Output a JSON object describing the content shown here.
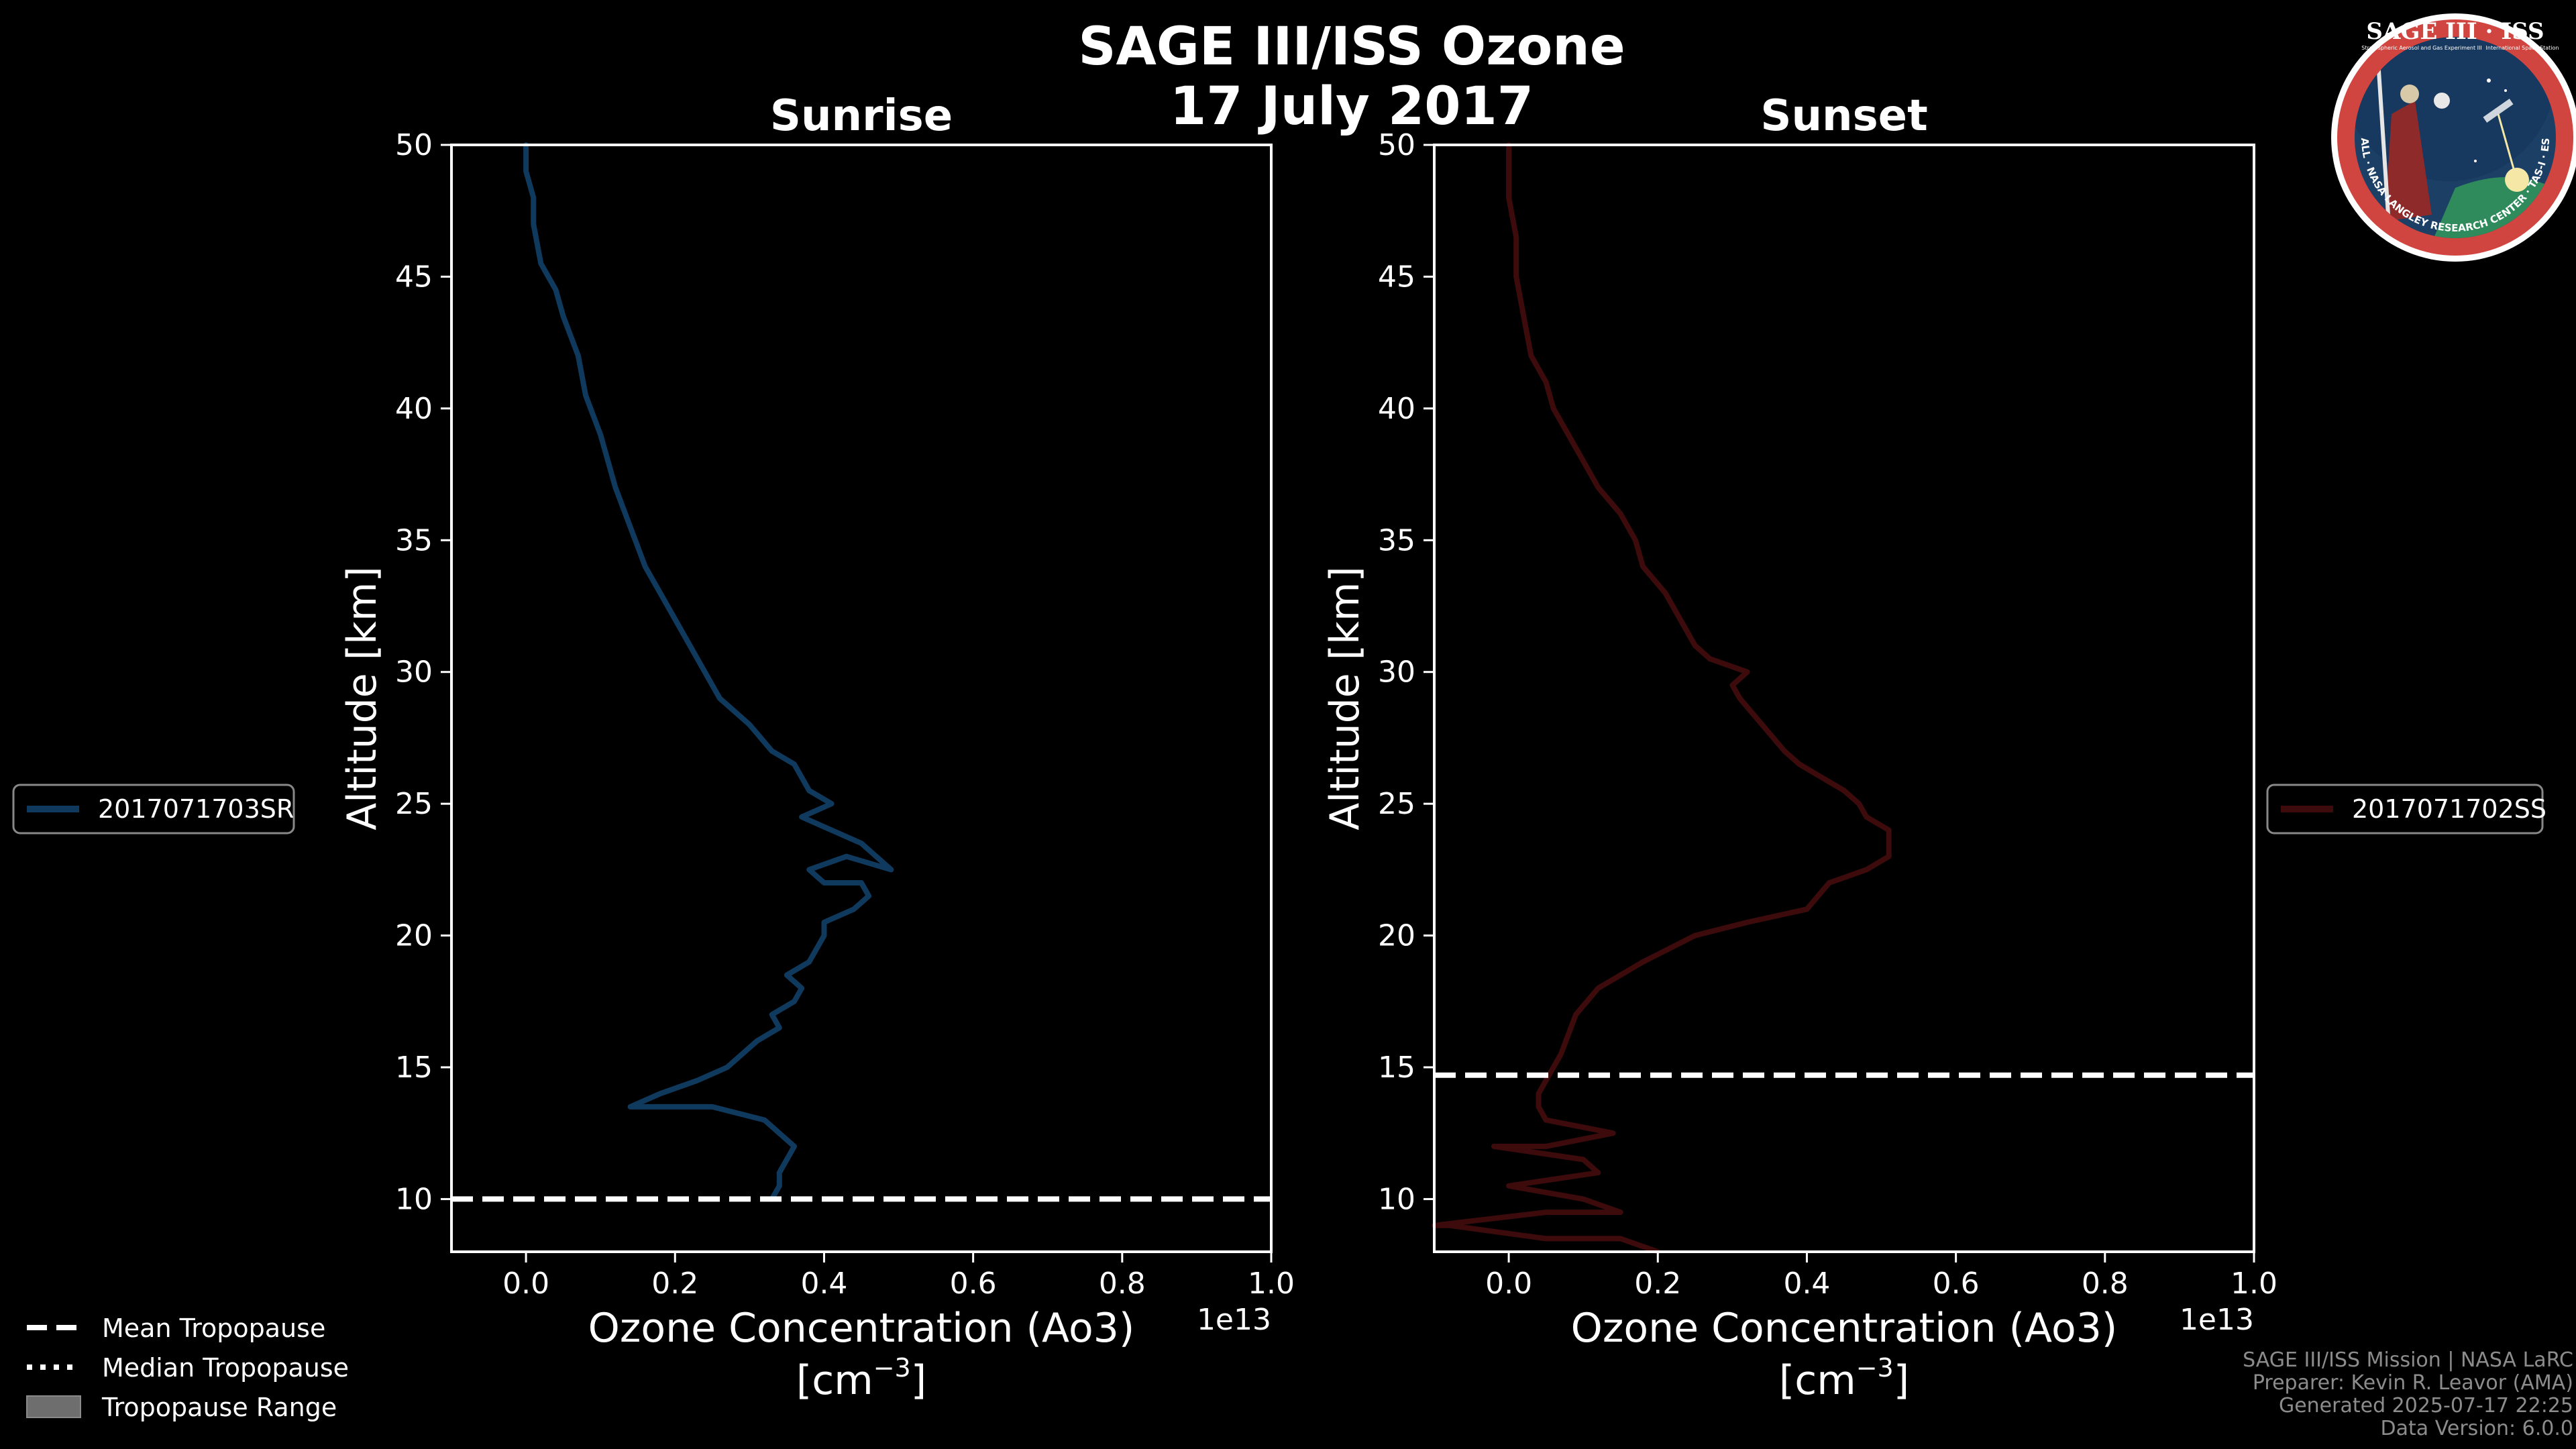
{
  "chart_data": {
    "type": "line",
    "title_line1": "SAGE III/ISS Ozone",
    "title_line2": "17 July 2017",
    "exponent_label": "1e13",
    "xlabel_line1": "Ozone Concentration (Ao3)",
    "xlabel_line2_pre": "[cm",
    "xlabel_line2_sup": "−3",
    "xlabel_line2_post": "]",
    "ylabel": "Altitude [km]",
    "xlim": [
      -0.1,
      1.0
    ],
    "ylim": [
      8,
      50
    ],
    "xticks": [
      0.0,
      0.2,
      0.4,
      0.6,
      0.8,
      1.0
    ],
    "xtick_labels": [
      "0.0",
      "0.2",
      "0.4",
      "0.6",
      "0.8",
      "1.0"
    ],
    "yticks": [
      10,
      15,
      20,
      25,
      30,
      35,
      40,
      45,
      50
    ],
    "ytick_labels": [
      "10",
      "15",
      "20",
      "25",
      "30",
      "35",
      "40",
      "45",
      "50"
    ],
    "panels": [
      {
        "title": "Sunrise",
        "series": [
          {
            "name": "2017071703SR",
            "color": "#0f3a5e",
            "x": [
              0.33,
              0.34,
              0.34,
              0.35,
              0.36,
              0.34,
              0.32,
              0.25,
              0.18,
              0.14,
              0.18,
              0.23,
              0.27,
              0.31,
              0.34,
              0.33,
              0.36,
              0.37,
              0.35,
              0.38,
              0.4,
              0.4,
              0.44,
              0.46,
              0.45,
              0.4,
              0.38,
              0.43,
              0.49,
              0.45,
              0.37,
              0.41,
              0.38,
              0.36,
              0.33,
              0.3,
              0.26,
              0.25,
              0.22,
              0.2,
              0.18,
              0.16,
              0.14,
              0.12,
              0.11,
              0.1,
              0.08,
              0.07,
              0.05,
              0.04,
              0.02,
              0.01,
              0.01,
              0.0,
              0.0
            ],
            "y": [
              10.0,
              10.5,
              11.0,
              11.5,
              12.0,
              12.5,
              13.0,
              13.5,
              13.5,
              13.5,
              14.0,
              14.5,
              15.0,
              16.0,
              16.5,
              17.0,
              17.5,
              18.0,
              18.5,
              19.0,
              20.0,
              20.5,
              21.0,
              21.5,
              22.0,
              22.0,
              22.5,
              23.0,
              22.5,
              23.5,
              24.5,
              25.0,
              25.5,
              26.5,
              27.0,
              28.0,
              29.0,
              29.5,
              31.0,
              32.0,
              33.0,
              34.0,
              35.5,
              37.0,
              38.0,
              39.0,
              40.5,
              42.0,
              43.5,
              44.5,
              45.5,
              47.0,
              48.0,
              49.0,
              50.0
            ]
          }
        ],
        "tropopause_mean": 10.0,
        "legend_label": "2017071703SR"
      },
      {
        "title": "Sunset",
        "series": [
          {
            "name": "2017071702SS",
            "color": "#3d0b0b",
            "x": [
              0.2,
              0.15,
              0.05,
              -0.08,
              -0.1,
              0.05,
              0.15,
              0.1,
              0.0,
              0.12,
              0.1,
              -0.02,
              0.05,
              0.14,
              0.05,
              0.04,
              0.04,
              0.05,
              0.07,
              0.09,
              0.12,
              0.18,
              0.25,
              0.32,
              0.4,
              0.43,
              0.48,
              0.51,
              0.51,
              0.48,
              0.47,
              0.45,
              0.42,
              0.39,
              0.37,
              0.34,
              0.31,
              0.3,
              0.32,
              0.27,
              0.25,
              0.23,
              0.21,
              0.18,
              0.17,
              0.15,
              0.12,
              0.1,
              0.08,
              0.06,
              0.05,
              0.03,
              0.02,
              0.01,
              0.01,
              0.0,
              0.0
            ],
            "y": [
              8.0,
              8.5,
              8.5,
              9.0,
              9.0,
              9.5,
              9.5,
              10.0,
              10.5,
              11.0,
              11.5,
              12.0,
              12.0,
              12.5,
              13.0,
              13.5,
              14.0,
              14.5,
              15.5,
              17.0,
              18.0,
              19.0,
              20.0,
              20.5,
              21.0,
              22.0,
              22.5,
              23.0,
              24.0,
              24.5,
              25.0,
              25.5,
              26.0,
              26.5,
              27.0,
              28.0,
              29.0,
              29.5,
              30.0,
              30.5,
              31.0,
              32.0,
              33.0,
              34.0,
              35.0,
              36.0,
              37.0,
              38.0,
              39.0,
              40.0,
              41.0,
              42.0,
              43.5,
              45.0,
              46.5,
              48.0,
              50.0
            ]
          }
        ],
        "tropopause_mean": 14.7,
        "legend_label": "2017071702SS"
      }
    ],
    "tropopause_legend": [
      "Mean Tropopause",
      "Median Tropopause",
      "Tropopause Range"
    ],
    "footer": [
      "SAGE III/ISS Mission | NASA LaRC",
      "Preparer: Kevin R. Leavor (AMA)",
      "Generated 2025-07-17 22:25",
      "Data Version: 6.0.0"
    ]
  },
  "logo": {
    "title": "SAGE III · ISS",
    "ring_text": "BALL · NASA LANGLEY RESEARCH CENTER · TAS-I · ESA",
    "subtitle_left": "Stratospheric Aerosol and Gas Experiment III",
    "subtitle_right": "International Space Station"
  },
  "colors": {
    "background": "#000000",
    "foreground": "#ffffff",
    "sunrise": "#0f3a5e",
    "sunset": "#3d0b0b",
    "footer": "#8c8c8c",
    "range_patch": "#6e6e6e"
  }
}
